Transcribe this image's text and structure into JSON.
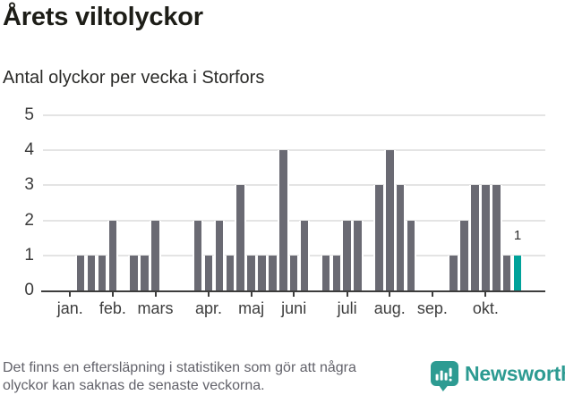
{
  "chart_data": {
    "type": "bar",
    "title": "Årets viltolyckor",
    "subtitle": "Antal olyckor per vecka i Storfors",
    "x_unit": "vecka",
    "values": [
      0,
      1,
      1,
      1,
      2,
      0,
      1,
      1,
      2,
      0,
      0,
      0,
      2,
      1,
      2,
      1,
      3,
      1,
      1,
      1,
      4,
      1,
      2,
      0,
      1,
      1,
      2,
      2,
      0,
      3,
      4,
      3,
      2,
      0,
      0,
      0,
      1,
      2,
      3,
      3,
      3,
      1,
      1
    ],
    "highlight_index": 42,
    "highlight_value_label": "1",
    "month_ticks": [
      {
        "label": "jan.",
        "slot": 0
      },
      {
        "label": "feb.",
        "slot": 4
      },
      {
        "label": "mars",
        "slot": 8
      },
      {
        "label": "apr.",
        "slot": 13
      },
      {
        "label": "maj",
        "slot": 17
      },
      {
        "label": "juni",
        "slot": 21
      },
      {
        "label": "juli",
        "slot": 26
      },
      {
        "label": "aug.",
        "slot": 30
      },
      {
        "label": "sep.",
        "slot": 34
      },
      {
        "label": "okt.",
        "slot": 39
      }
    ],
    "y_ticks": [
      0,
      1,
      2,
      3,
      4,
      5
    ],
    "ylim": [
      0,
      5
    ],
    "grid": true,
    "legend_position": "none",
    "colors": {
      "bar": "#6a6a73",
      "highlight": "#00a29a",
      "grid": "#e4e4e4",
      "axis": "#3d3d3d"
    }
  },
  "footer": {
    "note_lines": [
      "Det finns en eftersläpning i statistiken som gör att några",
      "olyckor kan saknas de senaste veckorna."
    ],
    "brand": "Newsworthy",
    "brand_color": "#2d9b92"
  }
}
